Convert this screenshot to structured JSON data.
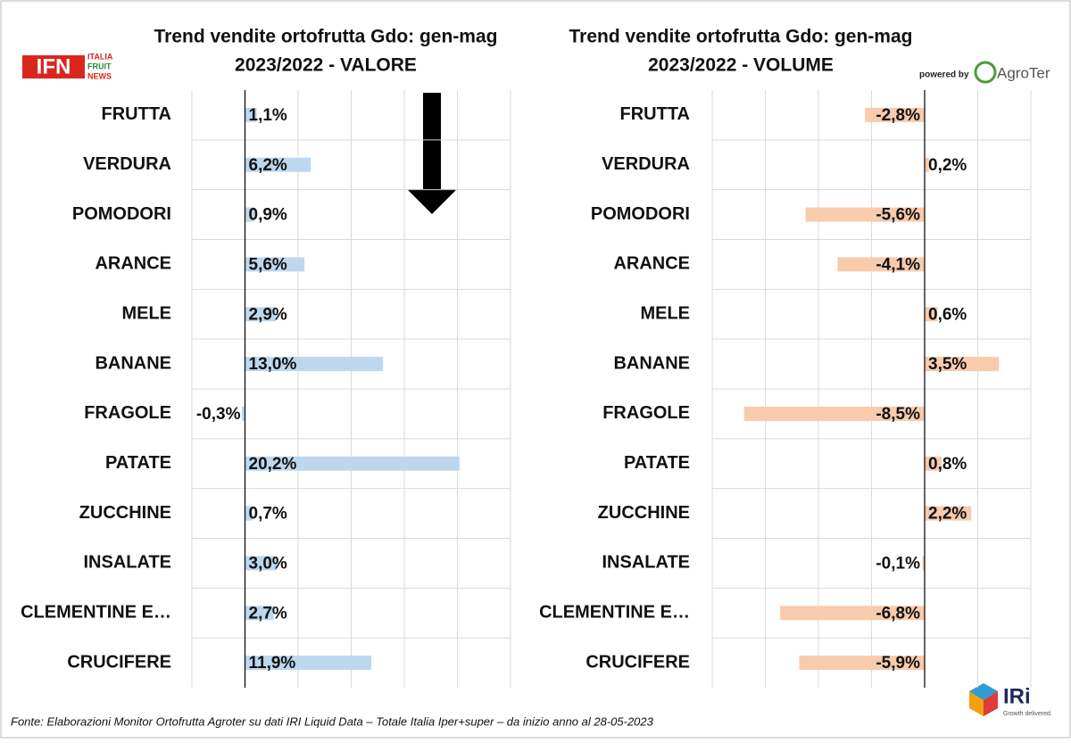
{
  "chart_data": [
    {
      "type": "bar",
      "orientation": "horizontal",
      "title": "Trend vendite ortofrutta Gdo: gen-mag",
      "subtitle": "2023/2022 - VALORE",
      "categories": [
        "FRUTTA",
        "VERDURA",
        "POMODORI",
        "ARANCE",
        "MELE",
        "BANANE",
        "FRAGOLE",
        "PATATE",
        "ZUCCHINE",
        "INSALATE",
        "CLEMENTINE E…",
        "CRUCIFERE"
      ],
      "values": [
        1.1,
        6.2,
        0.9,
        5.6,
        2.9,
        13.0,
        -0.3,
        20.2,
        0.7,
        3.0,
        2.7,
        11.9
      ],
      "value_labels": [
        "1,1%",
        "6,2%",
        "0,9%",
        "5,6%",
        "2,9%",
        "13,0%",
        "-0,3%",
        "20,2%",
        "0,7%",
        "3,0%",
        "2,7%",
        "11,9%"
      ],
      "color": "#bdd7ee",
      "xlim": [
        -5,
        25
      ],
      "xticks": [
        -5,
        0,
        5,
        10,
        15,
        20,
        25
      ],
      "grid": true
    },
    {
      "type": "bar",
      "orientation": "horizontal",
      "title": "Trend vendite ortofrutta Gdo: gen-mag",
      "subtitle": "2023/2022 - VOLUME",
      "categories": [
        "FRUTTA",
        "VERDURA",
        "POMODORI",
        "ARANCE",
        "MELE",
        "BANANE",
        "FRAGOLE",
        "PATATE",
        "ZUCCHINE",
        "INSALATE",
        "CLEMENTINE E…",
        "CRUCIFERE"
      ],
      "values": [
        -2.8,
        0.2,
        -5.6,
        -4.1,
        0.6,
        3.5,
        -8.5,
        0.8,
        2.2,
        -0.1,
        -6.8,
        -5.9
      ],
      "value_labels": [
        "-2,8%",
        "0,2%",
        "-5,6%",
        "-4,1%",
        "0,6%",
        "3,5%",
        "-8,5%",
        "0,8%",
        "2,2%",
        "-0,1%",
        "-6,8%",
        "-5,9%"
      ],
      "color": "#f8cbad",
      "xlim": [
        -10,
        5
      ],
      "xticks": [
        -10,
        -7.5,
        -5,
        -2.5,
        0,
        2.5,
        5
      ],
      "grid": true
    }
  ],
  "source": "Fonte: Elaborazioni Monitor Ortofrutta Agroter su dati IRI Liquid Data – Totale Italia Iper+super –  da inizio anno al 28-05-2023",
  "ifn_logo": {
    "mark": "IFN",
    "lines": [
      "ITALIA",
      "FRUIT",
      "NEWS"
    ]
  },
  "agroter_logo": {
    "prefix": "powered by",
    "name": "AgroTer"
  },
  "iri_logo": {
    "name": "IRi",
    "tagline": "Growth delivered."
  }
}
